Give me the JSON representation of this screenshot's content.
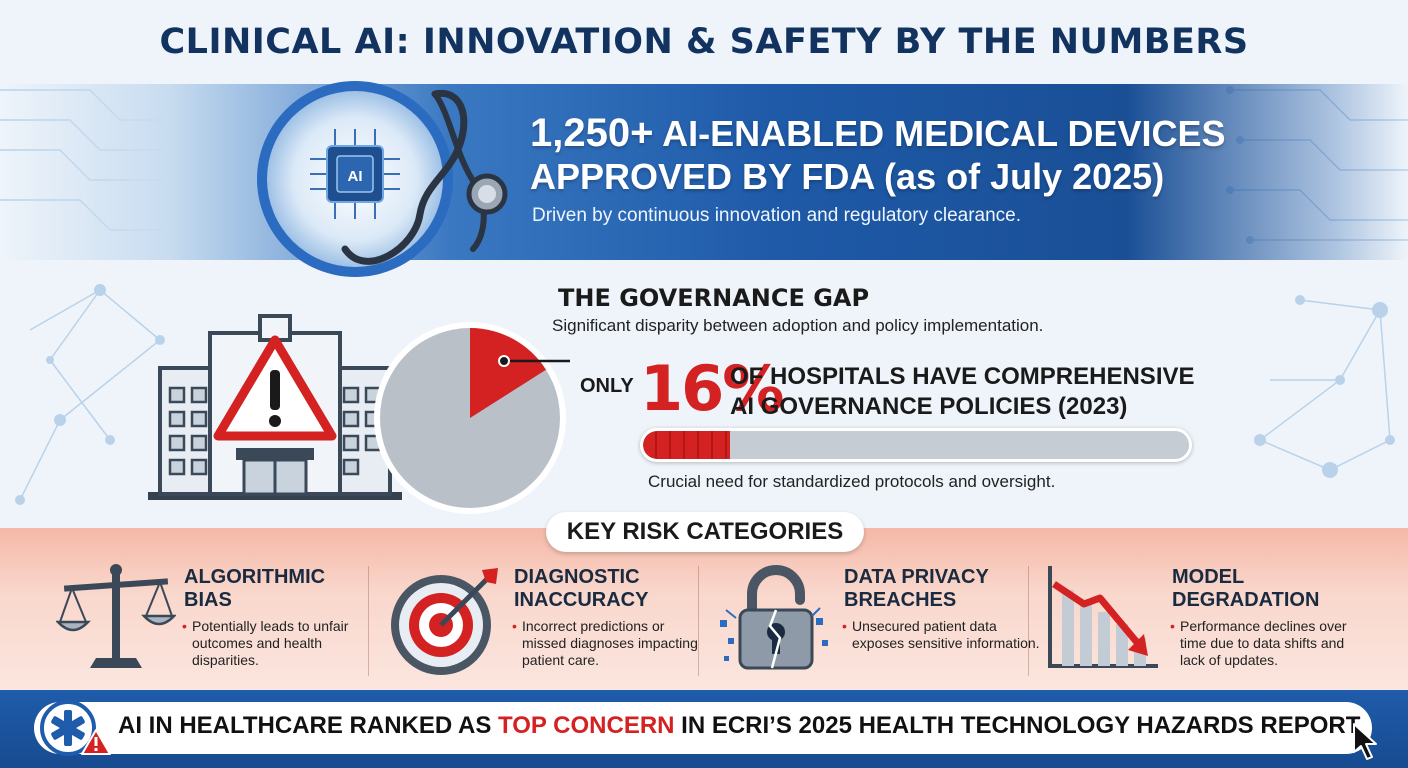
{
  "title": "CLINICAL AI: INNOVATION & SAFETY BY THE NUMBERS",
  "banner": {
    "headline_number": "1,250+",
    "headline_rest": " AI-ENABLED MEDICAL DEVICES",
    "headline_line2": "APPROVED BY FDA (as of July 2025)",
    "subtitle": "Driven by continuous innovation and regulatory clearance.",
    "chip_label": "AI"
  },
  "governance": {
    "title": "THE GOVERNANCE GAP",
    "subtitle": "Significant disparity between adoption and policy implementation.",
    "only_label": "ONLY",
    "percent_label": "16%",
    "percent_value": 16,
    "statement_line1": "OF HOSPITALS HAVE COMPREHENSIVE",
    "statement_line2": "AI GOVERNANCE POLICIES (2023)",
    "note": "Crucial need for standardized protocols and oversight."
  },
  "risks": {
    "heading": "KEY RISK CATEGORIES",
    "items": [
      {
        "title_line1": "ALGORITHMIC",
        "title_line2": "BIAS",
        "desc": "Potentially leads to unfair outcomes and health disparities.",
        "icon": "scales-icon"
      },
      {
        "title_line1": "DIAGNOSTIC",
        "title_line2": "INACCURACY",
        "desc": "Incorrect predictions or missed diagnoses impacting patient care.",
        "icon": "target-icon"
      },
      {
        "title_line1": "DATA PRIVACY",
        "title_line2": "BREACHES",
        "desc": "Unsecured patient data exposes sensitive information.",
        "icon": "broken-lock-icon"
      },
      {
        "title_line1": "MODEL",
        "title_line2": "DEGRADATION",
        "desc": "Performance declines over time due to data shifts and lack of updates.",
        "icon": "declining-chart-icon"
      }
    ]
  },
  "footer": {
    "text_before": "AI IN HEALTHCARE RANKED AS ",
    "text_highlight": "TOP CONCERN",
    "text_after": " IN ECRI’S 2025 HEALTH TECHNOLOGY HAZARDS REPORT"
  },
  "colors": {
    "navy": "#12335f",
    "accent_red": "#d42121",
    "banner_blue": "#1e5aa8"
  }
}
